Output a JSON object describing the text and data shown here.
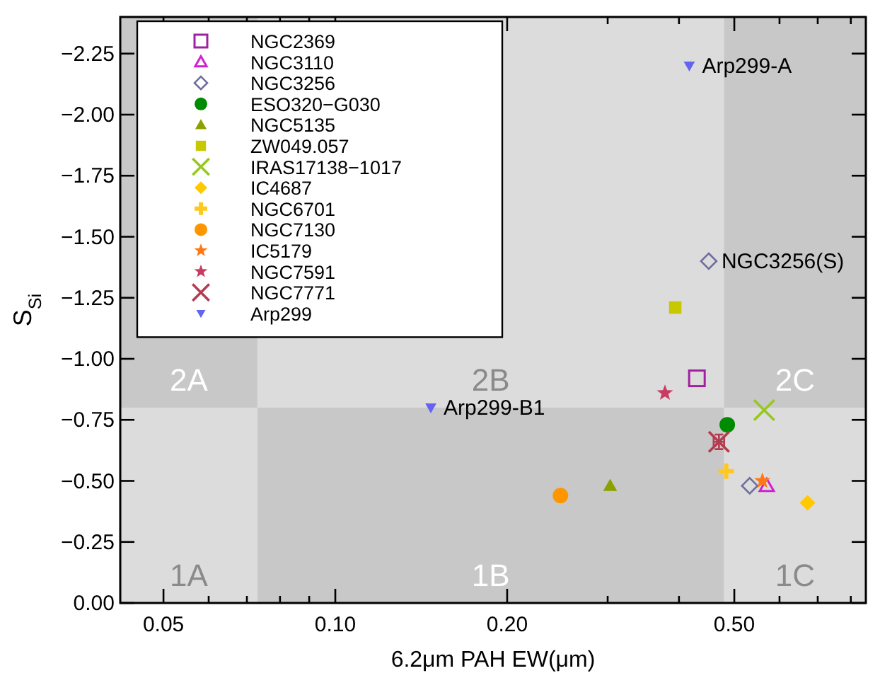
{
  "chart_data": {
    "type": "scatter",
    "xlabel": "6.2μm PAH EW(μm)",
    "ylabel": "S$_{Si}$",
    "log": "x",
    "xlim": [
      0.042,
      0.85
    ],
    "ylim": [
      0,
      -2.4
    ],
    "xticks": [
      0.05,
      {
        "value": 0.06,
        "label": null
      },
      {
        "value": 0.07,
        "label": null
      },
      {
        "value": 0.08,
        "label": null
      },
      {
        "value": 0.09,
        "label": null
      },
      {
        "value": 0.1,
        "label": "0.10"
      },
      {
        "value": 0.2,
        "label": "0.20"
      },
      {
        "value": 0.3,
        "label": null
      },
      {
        "value": 0.4,
        "label": null
      },
      {
        "value": 0.5,
        "label": "0.50"
      },
      {
        "value": 0.6,
        "label": null
      },
      {
        "value": 0.7,
        "label": null
      },
      {
        "value": 0.8,
        "label": null
      }
    ],
    "yticks": [
      {
        "value": 0,
        "label": "0.00"
      },
      -0.25,
      {
        "value": -0.5,
        "label": "−0.50"
      },
      -0.75,
      {
        "value": -1,
        "label": "−1.00"
      },
      -1.25,
      {
        "value": -1.5,
        "label": "−1.50"
      },
      -1.75,
      {
        "value": -2,
        "label": "−2.00"
      },
      -2.25
    ],
    "grid": false,
    "legend": "top left",
    "bands": [
      {
        "axis": "x",
        "from": 0.042,
        "to": 0.073,
        "label": "1A",
        "color": "#dcdcdc"
      },
      {
        "axis": "x",
        "from": 0.073,
        "to": 0.48,
        "label": "1B",
        "color": "#c8c8c8"
      },
      {
        "axis": "x",
        "from": 0.48,
        "to": 0.85,
        "label": "1C",
        "color": "#dcdcdc"
      },
      {
        "axis": "x",
        "from": 0.042,
        "to": 0.073,
        "label": "2A",
        "color": "#c8c8c8"
      },
      {
        "axis": "x",
        "from": 0.48,
        "to": 0.85,
        "label": "2C",
        "color": "#c8c8c8"
      },
      {
        "axis": "y",
        "from": -0.8,
        "to": -2.4,
        "label": "2B",
        "color": "#dcdcdc"
      }
    ],
    "annotations": [
      {
        "text": "Arp299-A",
        "x": 0.417,
        "y": -2.2
      },
      {
        "text": "Arp299-B1",
        "x": 0.147,
        "y": -0.8
      },
      {
        "text": "NGC3256(S)",
        "x": 0.451,
        "y": -1.4
      }
    ],
    "series": [
      {
        "name": "NGC2369",
        "color": "#a020a0",
        "marker": "square-open",
        "x": [
          0.43
        ],
        "values": [
          -0.92
        ]
      },
      {
        "name": "NGC3110",
        "color": "#d020d0",
        "marker": "triangle-open",
        "x": [
          0.57
        ],
        "values": [
          -0.48
        ]
      },
      {
        "name": "NGC3256",
        "color": "#6e6ea0",
        "marker": "diamond-open",
        "x": [
          0.532,
          0.451
        ],
        "values": [
          -0.48,
          -1.4
        ]
      },
      {
        "name": "ESO320−G030",
        "color": "#008c00",
        "marker": "circle",
        "x": [
          0.486
        ],
        "values": [
          -0.73
        ]
      },
      {
        "name": "NGC5135",
        "color": "#8ca000",
        "marker": "triangle",
        "x": [
          0.303
        ],
        "values": [
          -0.48
        ]
      },
      {
        "name": "ZW049.057",
        "color": "#c8c800",
        "marker": "square",
        "x": [
          0.394
        ],
        "values": [
          -1.21
        ]
      },
      {
        "name": "IRAS17138−1017",
        "color": "#96c81e",
        "marker": "cross",
        "x": [
          0.564
        ],
        "values": [
          -0.79
        ]
      },
      {
        "name": "IC4687",
        "color": "#ffc800",
        "marker": "diamond",
        "x": [
          0.672
        ],
        "values": [
          -0.41
        ]
      },
      {
        "name": "NGC6701",
        "color": "#ffc81e",
        "marker": "plus",
        "x": [
          0.484
        ],
        "values": [
          -0.54
        ]
      },
      {
        "name": "NGC7130",
        "color": "#ff9600",
        "marker": "circle",
        "x": [
          0.248
        ],
        "values": [
          -0.44
        ]
      },
      {
        "name": "IC5179",
        "color": "#ff7814",
        "marker": "star",
        "x": [
          0.56
        ],
        "values": [
          -0.5
        ]
      },
      {
        "name": "NGC7591",
        "color": "#c83c64",
        "marker": "star",
        "x": [
          0.378
        ],
        "values": [
          -0.86
        ]
      },
      {
        "name": "NGC7771",
        "color": "#b43c50",
        "marker": "cross",
        "x": [
          0.47
        ],
        "values": [
          -0.66
        ],
        "errors": [
          0.03
        ],
        "xerrors": [
          0.01
        ]
      },
      {
        "name": "Arp299",
        "color": "#6464f0",
        "marker": "triangle-down",
        "x": [
          0.417,
          0.147
        ],
        "values": [
          -2.2,
          -0.8
        ]
      }
    ]
  }
}
